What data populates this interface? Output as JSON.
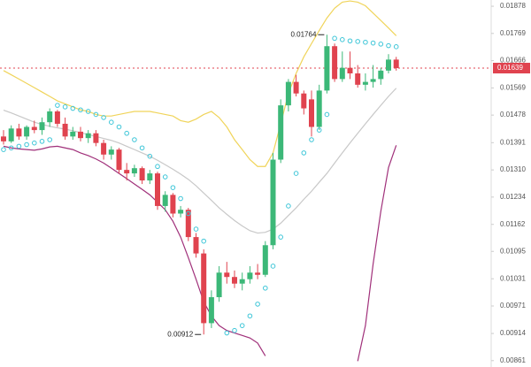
{
  "chart_data": {
    "type": "candlestick",
    "log_scale": true,
    "ylim": [
      0.00849,
      0.01904
    ],
    "yticks": [
      0.01878,
      0.01769,
      0.01666,
      0.01569,
      0.01478,
      0.01391,
      {
        "value": 0.0131,
        "label": "0.01310"
      },
      0.01234,
      0.01162,
      0.01095,
      0.01031,
      0.00971,
      0.00914,
      0.00861
    ],
    "up_color": "#3cb878",
    "down_color": "#e0434f",
    "open": [
      0.0141,
      0.01395,
      0.01435,
      0.0141,
      0.0144,
      0.0143,
      0.01455,
      0.0149,
      0.0145,
      0.0141,
      0.01425,
      0.01405,
      0.0142,
      0.0139,
      0.01355,
      0.0137,
      0.0131,
      0.013,
      0.01315,
      0.0128,
      0.013,
      0.0121,
      0.0124,
      0.0119,
      0.012,
      0.0113,
      0.0109,
      0.00935,
      0.0099,
      0.01045,
      0.01035,
      0.0102,
      0.0103,
      0.01045,
      0.0104,
      0.0111,
      0.0134,
      0.0151,
      0.0159,
      0.0155,
      0.0153,
      0.0144,
      0.0156,
      0.0172,
      0.016,
      0.0164,
      0.0162,
      0.0158,
      0.0159,
      0.016,
      0.0163,
      0.0167
    ],
    "high": [
      0.0143,
      0.01445,
      0.0145,
      0.01445,
      0.0146,
      0.0147,
      0.015,
      0.01495,
      0.0147,
      0.0144,
      0.0144,
      0.0143,
      0.0143,
      0.014,
      0.0138,
      0.01375,
      0.0133,
      0.01325,
      0.0132,
      0.0131,
      0.01305,
      0.0125,
      0.01245,
      0.0121,
      0.01205,
      0.0114,
      0.011,
      0.01005,
      0.0106,
      0.0107,
      0.0105,
      0.01045,
      0.0106,
      0.01065,
      0.0112,
      0.0136,
      0.0153,
      0.016,
      0.01615,
      0.0156,
      0.0156,
      0.0158,
      0.01764,
      0.0173,
      0.017,
      0.017,
      0.0165,
      0.0162,
      0.0165,
      0.0164,
      0.0169,
      0.0168
    ],
    "low": [
      0.01385,
      0.0139,
      0.014,
      0.014,
      0.0142,
      0.01415,
      0.0144,
      0.0144,
      0.014,
      0.014,
      0.01395,
      0.0139,
      0.0138,
      0.0134,
      0.0134,
      0.013,
      0.0128,
      0.0129,
      0.0127,
      0.0127,
      0.012,
      0.01195,
      0.0118,
      0.0118,
      0.0112,
      0.0108,
      0.00912,
      0.00925,
      0.0098,
      0.0102,
      0.0101,
      0.01005,
      0.0102,
      0.0103,
      0.01035,
      0.011,
      0.0133,
      0.0149,
      0.0154,
      0.0148,
      0.0141,
      0.0143,
      0.0155,
      0.0159,
      0.0159,
      0.016,
      0.0157,
      0.0156,
      0.0157,
      0.0158,
      0.0162,
      0.0163
    ],
    "close": [
      0.01395,
      0.01435,
      0.0141,
      0.0144,
      0.0143,
      0.01455,
      0.0149,
      0.0145,
      0.0141,
      0.01425,
      0.01405,
      0.0142,
      0.0139,
      0.01355,
      0.0137,
      0.0131,
      0.013,
      0.01315,
      0.0128,
      0.013,
      0.0121,
      0.0124,
      0.0119,
      0.012,
      0.0113,
      0.0109,
      0.00935,
      0.0099,
      0.01045,
      0.01035,
      0.0102,
      0.0103,
      0.01045,
      0.0104,
      0.0111,
      0.0134,
      0.0151,
      0.0159,
      0.0155,
      0.015,
      0.0144,
      0.0156,
      0.0172,
      0.016,
      0.0164,
      0.0162,
      0.0158,
      0.0159,
      0.016,
      0.0163,
      0.0167,
      0.01639
    ],
    "series": [
      {
        "color": "#f0d45a",
        "values": [
          0.0163,
          0.01615,
          0.016,
          0.01585,
          0.0157,
          0.01555,
          0.0154,
          0.01525,
          0.01515,
          0.01505,
          0.01495,
          0.0149,
          0.0148,
          0.01475,
          0.01475,
          0.0148,
          0.01485,
          0.0149,
          0.0149,
          0.0149,
          0.01485,
          0.0148,
          0.01475,
          0.0146,
          0.01455,
          0.01465,
          0.0148,
          0.0149,
          0.0147,
          0.0144,
          0.014,
          0.0137,
          0.0134,
          0.0132,
          0.0132,
          0.0136,
          0.0145,
          0.0155,
          0.0162,
          0.0168,
          0.0173,
          0.0178,
          0.0183,
          0.0187,
          0.01895,
          0.019,
          0.01895,
          0.0188,
          0.0185,
          0.0182,
          0.0179,
          0.0176
        ]
      },
      {
        "color": "#c8c8c8",
        "values": [
          0.01494,
          0.01485,
          0.01475,
          0.01465,
          0.01455,
          0.01448,
          0.01442,
          0.01437,
          0.01433,
          0.01428,
          0.01422,
          0.01416,
          0.0141,
          0.01404,
          0.01398,
          0.0139,
          0.0138,
          0.0137,
          0.0136,
          0.0135,
          0.01338,
          0.01325,
          0.01312,
          0.01298,
          0.01283,
          0.01265,
          0.01245,
          0.01225,
          0.01205,
          0.01188,
          0.01172,
          0.01158,
          0.01146,
          0.0114,
          0.01142,
          0.0115,
          0.01165,
          0.01185,
          0.01205,
          0.01228,
          0.0125,
          0.01275,
          0.013,
          0.0133,
          0.0136,
          0.0139,
          0.0142,
          0.0145,
          0.0148,
          0.0151,
          0.0154,
          0.01568
        ]
      },
      {
        "color": "#a0307a",
        "values": [
          0.0138,
          0.01375,
          0.01372,
          0.0137,
          0.01368,
          0.01372,
          0.01378,
          0.0138,
          0.01375,
          0.0137,
          0.0136,
          0.01352,
          0.01342,
          0.0133,
          0.01315,
          0.013,
          0.01285,
          0.0127,
          0.01255,
          0.0124,
          0.0122,
          0.012,
          0.0117,
          0.0113,
          0.0108,
          0.0103,
          0.0098,
          0.0095,
          0.0093,
          0.0092,
          0.00915,
          0.0091,
          0.00905,
          0.00895,
          0.0087,
          null,
          null,
          null,
          null,
          null,
          null,
          null,
          null,
          null,
          null,
          null,
          0.0086,
          0.0093,
          0.01065,
          0.01196,
          0.01317,
          0.01383
        ]
      }
    ],
    "sar": {
      "color": "#3ec6d8",
      "values": [
        0.0137,
        0.01375,
        0.0138,
        0.01385,
        0.0139,
        0.01395,
        0.014,
        0.0151,
        0.01505,
        0.015,
        0.01495,
        0.0149,
        0.0148,
        0.0147,
        0.01455,
        0.0144,
        0.0142,
        0.014,
        0.01375,
        0.0135,
        0.0132,
        0.0129,
        0.0126,
        0.0123,
        0.0119,
        0.0115,
        0.0112,
        null,
        null,
        0.00915,
        0.0092,
        0.0093,
        0.0095,
        0.00975,
        0.0101,
        0.0106,
        0.0113,
        0.0121,
        0.013,
        0.0136,
        0.014,
        0.0143,
        0.0148,
        0.0175,
        0.01745,
        0.0174,
        0.01738,
        0.01735,
        0.01732,
        0.01728,
        0.01722,
        0.01718
      ]
    },
    "annotations": [
      0.01764,
      0.00912
    ],
    "last_price": 0.01639,
    "last_price_color": "#e0434f"
  }
}
